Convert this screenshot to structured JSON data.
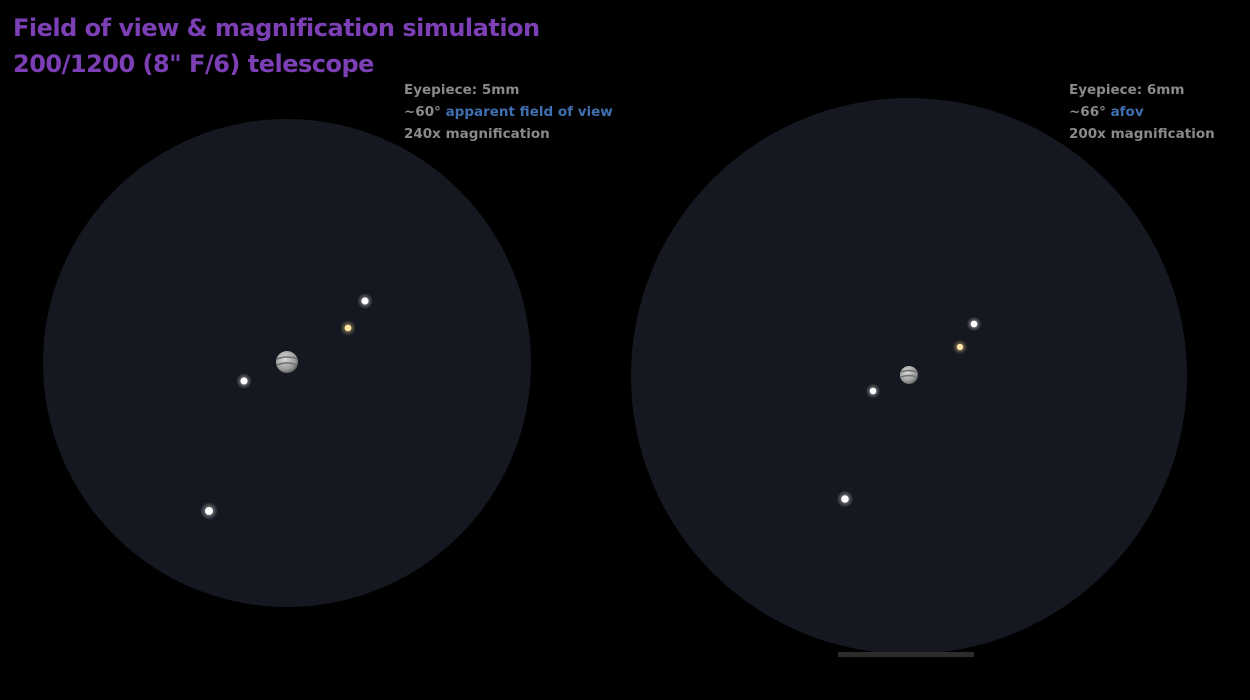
{
  "title": {
    "line1": "Field of view & magnification simulation",
    "line2": "200/1200 (8\" F/6) telescope"
  },
  "views": {
    "left": {
      "eyepiece": "Eyepiece: 5mm",
      "afov_value": "~60°",
      "afov_label": "apparent field of view",
      "magnification": "240x magnification"
    },
    "right": {
      "eyepiece": "Eyepiece: 6mm",
      "afov_value": "~66°",
      "afov_label": "afov",
      "magnification": "200x magnification"
    }
  },
  "objects": [
    "jupiter",
    "io",
    "europa",
    "ganymede",
    "callisto"
  ],
  "colors": {
    "background": "#000000",
    "title": "#7d3fb5",
    "info_text": "#8a8a8a",
    "afov_text": "#3f6fb0",
    "field": "#151820",
    "moon": "#ffffff",
    "moon_warm": "#ffd48a",
    "bottom_bar": "#2c2c2c"
  }
}
